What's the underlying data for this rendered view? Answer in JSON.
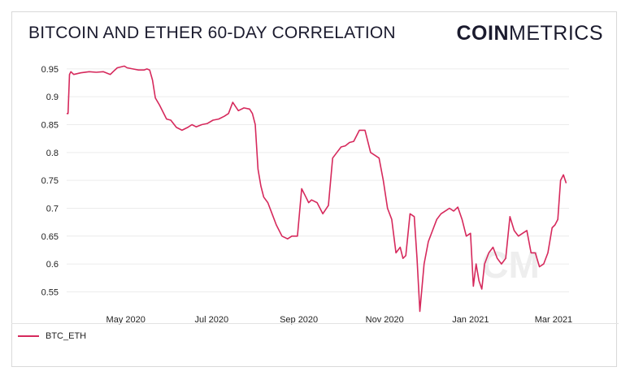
{
  "header": {
    "title": "BITCOIN AND ETHER 60-DAY CORRELATION",
    "brand_bold": "COIN",
    "brand_light": "METRICS"
  },
  "watermark": "CM",
  "colors": {
    "series": "#d6295c",
    "grid": "#ececec",
    "text": "#1b1b2e",
    "axis_text": "#222222"
  },
  "legend": {
    "items": [
      {
        "label": "BTC_ETH"
      }
    ]
  },
  "chart_data": {
    "type": "line",
    "title": "BITCOIN AND ETHER 60-DAY CORRELATION",
    "xlabel": "",
    "ylabel": "",
    "xlim": [
      "2020-03-20",
      "2021-03-12"
    ],
    "ylim": [
      0.52,
      0.96
    ],
    "grid": true,
    "legend_position": "bottom-left",
    "yticks": [
      0.55,
      0.6,
      0.65,
      0.7,
      0.75,
      0.8,
      0.85,
      0.9,
      0.95
    ],
    "ytick_labels": [
      "0.55",
      "0.6",
      "0.65",
      "0.7",
      "0.75",
      "0.8",
      "0.85",
      "0.9",
      "0.95"
    ],
    "xticks": [
      "2020-05-01",
      "2020-07-01",
      "2020-09-01",
      "2020-11-01",
      "2021-01-01",
      "2021-03-01"
    ],
    "xtick_labels": [
      "May 2020",
      "Jul 2020",
      "Sep 2020",
      "Nov 2020",
      "Jan 2021",
      "Mar 2021"
    ],
    "series": [
      {
        "name": "BTC_ETH",
        "x": [
          "2020-03-20",
          "2020-03-21",
          "2020-03-22",
          "2020-03-23",
          "2020-03-25",
          "2020-03-30",
          "2020-04-05",
          "2020-04-10",
          "2020-04-15",
          "2020-04-20",
          "2020-04-22",
          "2020-04-25",
          "2020-04-30",
          "2020-05-02",
          "2020-05-06",
          "2020-05-10",
          "2020-05-14",
          "2020-05-16",
          "2020-05-18",
          "2020-05-20",
          "2020-05-22",
          "2020-05-25",
          "2020-05-30",
          "2020-06-02",
          "2020-06-06",
          "2020-06-10",
          "2020-06-14",
          "2020-06-17",
          "2020-06-20",
          "2020-06-24",
          "2020-06-28",
          "2020-07-02",
          "2020-07-06",
          "2020-07-10",
          "2020-07-13",
          "2020-07-16",
          "2020-07-20",
          "2020-07-24",
          "2020-07-28",
          "2020-07-30",
          "2020-08-01",
          "2020-08-03",
          "2020-08-05",
          "2020-08-07",
          "2020-08-10",
          "2020-08-13",
          "2020-08-16",
          "2020-08-20",
          "2020-08-24",
          "2020-08-27",
          "2020-08-31",
          "2020-09-03",
          "2020-09-06",
          "2020-09-08",
          "2020-09-10",
          "2020-09-14",
          "2020-09-18",
          "2020-09-22",
          "2020-09-25",
          "2020-09-28",
          "2020-10-01",
          "2020-10-04",
          "2020-10-07",
          "2020-10-10",
          "2020-10-14",
          "2020-10-18",
          "2020-10-22",
          "2020-10-25",
          "2020-10-28",
          "2020-10-31",
          "2020-11-03",
          "2020-11-06",
          "2020-11-09",
          "2020-11-12",
          "2020-11-14",
          "2020-11-16",
          "2020-11-19",
          "2020-11-22",
          "2020-11-24",
          "2020-11-26",
          "2020-11-29",
          "2020-12-02",
          "2020-12-05",
          "2020-12-08",
          "2020-12-11",
          "2020-12-14",
          "2020-12-17",
          "2020-12-20",
          "2020-12-23",
          "2020-12-26",
          "2020-12-29",
          "2021-01-01",
          "2021-01-03",
          "2021-01-05",
          "2021-01-07",
          "2021-01-09",
          "2021-01-11",
          "2021-01-14",
          "2021-01-17",
          "2021-01-20",
          "2021-01-23",
          "2021-01-26",
          "2021-01-29",
          "2021-02-01",
          "2021-02-04",
          "2021-02-07",
          "2021-02-10",
          "2021-02-13",
          "2021-02-16",
          "2021-02-19",
          "2021-02-22",
          "2021-02-25",
          "2021-02-28",
          "2021-03-02",
          "2021-03-04",
          "2021-03-06",
          "2021-03-08",
          "2021-03-10"
        ],
        "values": [
          0.87,
          0.87,
          0.94,
          0.945,
          0.94,
          0.943,
          0.945,
          0.944,
          0.945,
          0.94,
          0.945,
          0.952,
          0.955,
          0.952,
          0.95,
          0.948,
          0.948,
          0.95,
          0.948,
          0.93,
          0.898,
          0.885,
          0.86,
          0.858,
          0.845,
          0.84,
          0.845,
          0.85,
          0.846,
          0.85,
          0.852,
          0.858,
          0.86,
          0.865,
          0.87,
          0.89,
          0.875,
          0.88,
          0.878,
          0.87,
          0.85,
          0.77,
          0.74,
          0.72,
          0.71,
          0.69,
          0.67,
          0.65,
          0.645,
          0.65,
          0.65,
          0.735,
          0.72,
          0.71,
          0.715,
          0.71,
          0.69,
          0.705,
          0.79,
          0.8,
          0.81,
          0.812,
          0.818,
          0.82,
          0.84,
          0.84,
          0.8,
          0.795,
          0.79,
          0.75,
          0.7,
          0.68,
          0.62,
          0.63,
          0.61,
          0.615,
          0.69,
          0.685,
          0.61,
          0.515,
          0.6,
          0.64,
          0.66,
          0.68,
          0.69,
          0.695,
          0.7,
          0.695,
          0.702,
          0.68,
          0.65,
          0.655,
          0.56,
          0.6,
          0.57,
          0.555,
          0.6,
          0.62,
          0.63,
          0.61,
          0.6,
          0.61,
          0.685,
          0.66,
          0.65,
          0.655,
          0.66,
          0.62,
          0.62,
          0.595,
          0.6,
          0.62,
          0.665,
          0.67,
          0.68,
          0.75,
          0.76,
          0.745
        ]
      }
    ]
  }
}
